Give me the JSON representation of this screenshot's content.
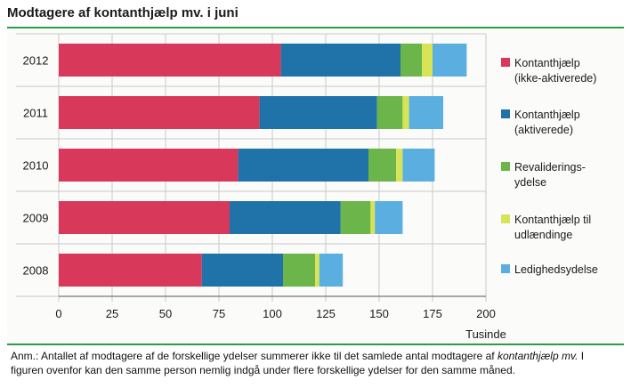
{
  "title": "Modtagere af kontanthjælp mv. i juni",
  "note": {
    "part1": "Anm.: Antallet af modtagere af de forskellige ydelser summerer ikke til det samlede antal modtagere af ",
    "italic": "kontanthjælp mv.",
    "part2": " I figuren ovenfor kan den samme person nemlig indgå under flere forskellige ydelser for den samme måned."
  },
  "colors": {
    "kontant_ikke": "#d8385a",
    "kontant_akt": "#1f73a8",
    "revalidering": "#6bb54a",
    "udlaendinge": "#d7e455",
    "ledighed": "#5aaee0",
    "rule": "#2e9c45"
  },
  "chart_data": {
    "type": "bar",
    "orientation": "horizontal",
    "stacked": true,
    "categories": [
      "2012",
      "2011",
      "2010",
      "2009",
      "2008"
    ],
    "series": [
      {
        "name": "Kontanthjælp (ikke-aktiverede)",
        "label_lines": [
          "Kontanthjælp",
          "(ikke-aktiverede)"
        ],
        "color": "#d8385a",
        "values": [
          104,
          94,
          84,
          80,
          67
        ]
      },
      {
        "name": "Kontanthjælp (aktiverede)",
        "label_lines": [
          "Kontanthjælp",
          "(aktiverede)"
        ],
        "color": "#1f73a8",
        "values": [
          56,
          55,
          61,
          52,
          38
        ]
      },
      {
        "name": "Revalideringsydelse",
        "label_lines": [
          "Revaliderings-",
          "ydelse"
        ],
        "color": "#6bb54a",
        "values": [
          10,
          12,
          13,
          14,
          15
        ]
      },
      {
        "name": "Kontanthjælp til udlændinge",
        "label_lines": [
          "Kontanthjælp til",
          "udlændinge"
        ],
        "color": "#d7e455",
        "values": [
          5,
          3,
          3,
          2,
          2
        ]
      },
      {
        "name": "Ledighedsydelse",
        "label_lines": [
          "Ledighedsydelse"
        ],
        "color": "#5aaee0",
        "values": [
          16,
          16,
          15,
          13,
          11
        ]
      }
    ],
    "x_ticks": [
      "0",
      "25",
      "50",
      "75",
      "100",
      "125",
      "150",
      "175",
      "200"
    ],
    "xlim": [
      0,
      200
    ],
    "xlabel": "Tusinde",
    "ylabel": "",
    "grid": true,
    "legend_position": "right"
  }
}
